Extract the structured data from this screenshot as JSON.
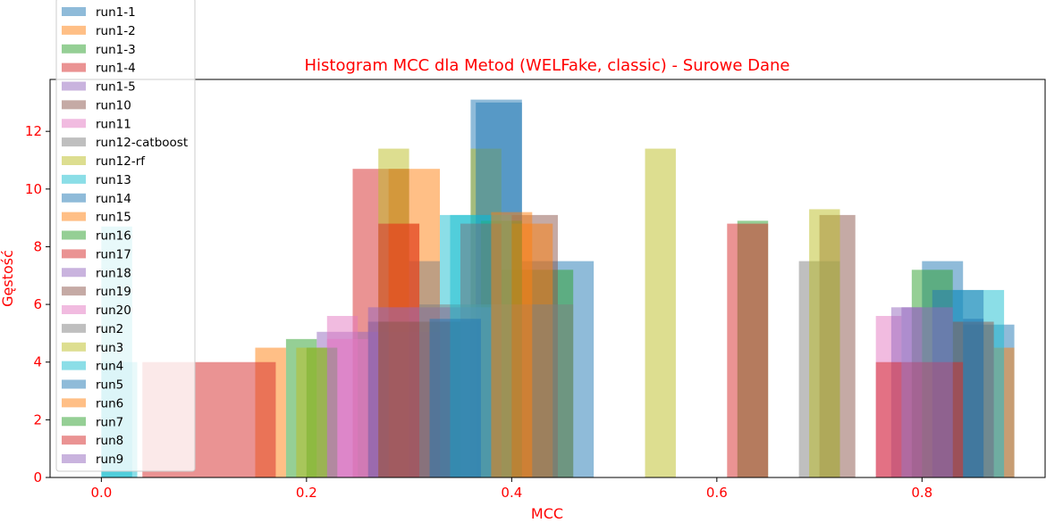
{
  "chart_data": {
    "type": "bar",
    "title": "Histogram MCC dla Metod (WELFake, classic) - Surowe Dane",
    "xlabel": "MCC",
    "ylabel": "Gęstość",
    "xlim": [
      -0.05,
      0.92
    ],
    "ylim": [
      0,
      13.8
    ],
    "x_ticks": [
      "0.0",
      "0.2",
      "0.4",
      "0.6",
      "0.8"
    ],
    "x_tick_values": [
      0.0,
      0.2,
      0.4,
      0.6,
      0.8
    ],
    "y_ticks": [
      "0",
      "2",
      "4",
      "6",
      "8",
      "10",
      "12"
    ],
    "y_tick_values": [
      0,
      2,
      4,
      6,
      8,
      10,
      12
    ],
    "grid": false,
    "legend_position": "upper-left",
    "label_color": "#ff0000",
    "series": [
      {
        "name": "run1-1",
        "color": "#1f77b4",
        "bins": [
          [
            0.26,
            0.38,
            5.4
          ],
          [
            0.36,
            0.41,
            13.1
          ],
          [
            0.41,
            0.48,
            7.5
          ],
          [
            0.8,
            0.84,
            7.5
          ],
          [
            0.84,
            0.89,
            5.3
          ]
        ]
      },
      {
        "name": "run1-2",
        "color": "#ff7f0e",
        "bins": [
          [
            0.15,
            0.18,
            4.5
          ],
          [
            0.28,
            0.33,
            10.7
          ],
          [
            0.87,
            0.89,
            4.5
          ]
        ]
      },
      {
        "name": "run1-3",
        "color": "#2ca02c",
        "bins": [
          [
            0.18,
            0.21,
            4.8
          ],
          [
            0.39,
            0.46,
            7.2
          ],
          [
            0.62,
            0.65,
            8.9
          ],
          [
            0.79,
            0.83,
            7.2
          ]
        ]
      },
      {
        "name": "run1-4",
        "color": "#d62728",
        "bins": [
          [
            0.04,
            0.17,
            4.0
          ],
          [
            0.245,
            0.3,
            10.7
          ]
        ]
      },
      {
        "name": "run1-5",
        "color": "#9467bd",
        "bins": [
          [
            0.21,
            0.26,
            5.05
          ],
          [
            0.26,
            0.33,
            5.05
          ]
        ]
      },
      {
        "name": "run10",
        "color": "#8c564b",
        "bins": [
          [
            0.4,
            0.445,
            9.1
          ],
          [
            0.7,
            0.735,
            9.1
          ]
        ]
      },
      {
        "name": "run11",
        "color": "#e377c2",
        "bins": [
          [
            0.22,
            0.25,
            5.6
          ],
          [
            0.755,
            0.78,
            5.6
          ]
        ]
      },
      {
        "name": "run12-catboost",
        "color": "#7f7f7f",
        "bins": [
          [
            0.3,
            0.33,
            7.5
          ],
          [
            0.68,
            0.72,
            7.5
          ]
        ]
      },
      {
        "name": "run12-rf",
        "color": "#bcbd22",
        "bins": [
          [
            0.27,
            0.3,
            11.4
          ],
          [
            0.36,
            0.39,
            11.4
          ],
          [
            0.53,
            0.56,
            11.4
          ]
        ]
      },
      {
        "name": "run13",
        "color": "#17becf",
        "bins": [
          [
            0.33,
            0.39,
            9.1
          ],
          [
            0.83,
            0.88,
            6.5
          ]
        ]
      },
      {
        "name": "run14",
        "color": "#1f77b4",
        "bins": [
          [
            0.365,
            0.41,
            13.0
          ],
          [
            0.81,
            0.86,
            6.5
          ]
        ]
      },
      {
        "name": "run15",
        "color": "#ff7f0e",
        "bins": [
          [
            0.28,
            0.31,
            8.8
          ],
          [
            0.4,
            0.44,
            8.8
          ]
        ]
      },
      {
        "name": "run16",
        "color": "#2ca02c",
        "bins": [
          [
            0.2,
            0.23,
            4.5
          ],
          [
            0.37,
            0.41,
            8.9
          ]
        ]
      },
      {
        "name": "run17",
        "color": "#d62728",
        "bins": [
          [
            0.27,
            0.31,
            8.8
          ],
          [
            0.35,
            0.39,
            8.8
          ],
          [
            0.61,
            0.65,
            8.8
          ]
        ]
      },
      {
        "name": "run18",
        "color": "#9467bd",
        "bins": [
          [
            0.26,
            0.38,
            5.9
          ],
          [
            0.77,
            0.8,
            5.9
          ]
        ]
      },
      {
        "name": "run19",
        "color": "#8c564b",
        "bins": [
          [
            0.27,
            0.35,
            5.4
          ],
          [
            0.83,
            0.87,
            5.4
          ]
        ]
      },
      {
        "name": "run20",
        "color": "#e377c2",
        "bins": [
          [
            0.22,
            0.26,
            4.8
          ]
        ]
      },
      {
        "name": "run2",
        "color": "#7f7f7f",
        "bins": [
          [
            0.31,
            0.4,
            6.0
          ],
          [
            0.4,
            0.46,
            6.0
          ]
        ]
      },
      {
        "name": "run3",
        "color": "#bcbd22",
        "bins": [
          [
            0.19,
            0.22,
            4.5
          ],
          [
            0.69,
            0.72,
            9.3
          ]
        ]
      },
      {
        "name": "run4",
        "color": "#17becf",
        "bins": [
          [
            0.0,
            0.035,
            4.0
          ],
          [
            0.0,
            0.03,
            8.7
          ],
          [
            0.34,
            0.4,
            9.1
          ]
        ]
      },
      {
        "name": "run5",
        "color": "#1f77b4",
        "bins": [
          [
            0.32,
            0.37,
            5.5
          ],
          [
            0.84,
            0.86,
            5.5
          ]
        ]
      },
      {
        "name": "run6",
        "color": "#ff7f0e",
        "bins": [
          [
            0.38,
            0.42,
            9.2
          ]
        ]
      },
      {
        "name": "run7",
        "color": "#2ca02c",
        "bins": [
          [
            0.88,
            0.88,
            0.0
          ]
        ]
      },
      {
        "name": "run8",
        "color": "#d62728",
        "bins": [
          [
            0.755,
            0.84,
            4.0
          ]
        ]
      },
      {
        "name": "run9",
        "color": "#9467bd",
        "bins": [
          [
            0.78,
            0.83,
            5.9
          ]
        ]
      }
    ]
  }
}
